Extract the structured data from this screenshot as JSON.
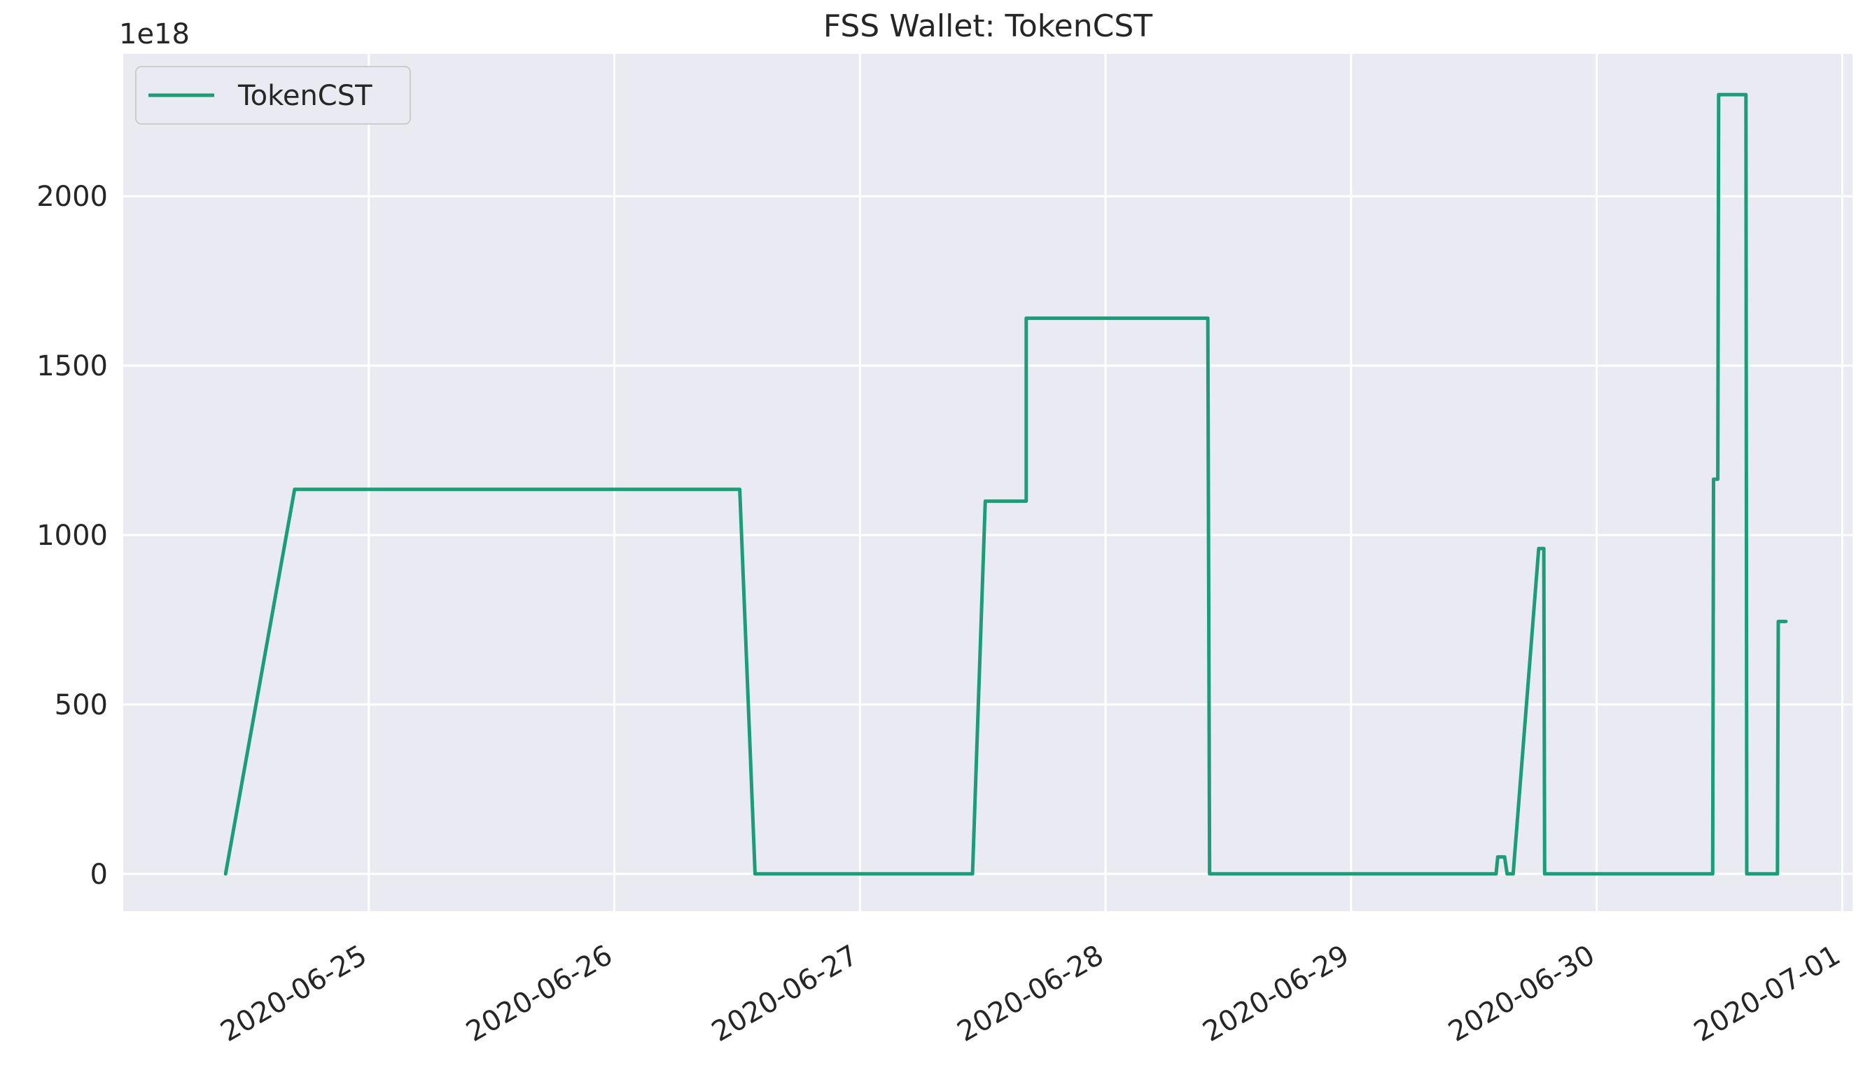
{
  "chart_data": {
    "type": "line",
    "title": "FSS Wallet: TokenCST",
    "xlabel": "",
    "ylabel": "",
    "y_offset_text": "1e18",
    "x_axis_type": "date",
    "xlim": [
      "2020-06-24T00:00",
      "2020-07-01T01:00"
    ],
    "ylim": [
      -110,
      2420
    ],
    "grid": true,
    "legend_position": "top-left",
    "x_ticks": [
      "2020-06-25",
      "2020-06-26",
      "2020-06-27",
      "2020-06-28",
      "2020-06-29",
      "2020-06-30",
      "2020-07-01"
    ],
    "y_ticks": [
      0,
      500,
      1000,
      1500,
      2000
    ],
    "series": [
      {
        "name": "TokenCST",
        "color": "#1b9e77",
        "points": [
          [
            "2020-06-24T10:00",
            0
          ],
          [
            "2020-06-24T16:45",
            1135
          ],
          [
            "2020-06-26T12:15",
            1135
          ],
          [
            "2020-06-26T13:45",
            0
          ],
          [
            "2020-06-27T11:00",
            0
          ],
          [
            "2020-06-27T12:15",
            1100
          ],
          [
            "2020-06-27T16:15",
            1100
          ],
          [
            "2020-06-27T16:15",
            1640
          ],
          [
            "2020-06-28T10:00",
            1640
          ],
          [
            "2020-06-28T10:10",
            0
          ],
          [
            "2020-06-29T14:10",
            0
          ],
          [
            "2020-06-29T14:20",
            50
          ],
          [
            "2020-06-29T15:00",
            50
          ],
          [
            "2020-06-29T15:15",
            0
          ],
          [
            "2020-06-29T15:50",
            0
          ],
          [
            "2020-06-29T18:20",
            960
          ],
          [
            "2020-06-29T18:50",
            960
          ],
          [
            "2020-06-29T18:55",
            0
          ],
          [
            "2020-06-30T11:20",
            0
          ],
          [
            "2020-06-30T11:25",
            1165
          ],
          [
            "2020-06-30T11:50",
            1165
          ],
          [
            "2020-06-30T11:55",
            2300
          ],
          [
            "2020-06-30T14:35",
            2300
          ],
          [
            "2020-06-30T14:40",
            0
          ],
          [
            "2020-06-30T17:40",
            0
          ],
          [
            "2020-06-30T17:45",
            745
          ],
          [
            "2020-06-30T18:30",
            745
          ]
        ]
      }
    ]
  }
}
